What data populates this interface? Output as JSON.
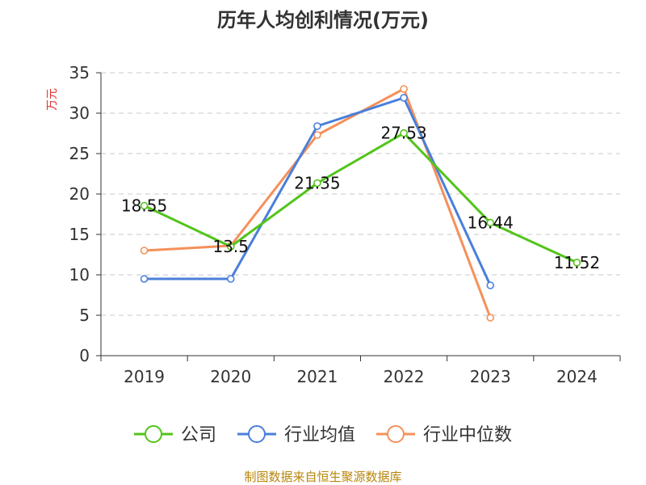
{
  "chart_data": {
    "type": "line",
    "title": "历年人均创利情况(万元)",
    "ylabel": "万元",
    "xlabel": "",
    "categories": [
      "2019",
      "2020",
      "2021",
      "2022",
      "2023",
      "2024"
    ],
    "ylim": [
      0,
      35
    ],
    "yticks": [
      0,
      5,
      10,
      15,
      20,
      25,
      30,
      35
    ],
    "grid": true,
    "legend_position": "bottom",
    "series": [
      {
        "name": "公司",
        "color": "#52c41a",
        "values": [
          18.55,
          13.5,
          21.35,
          27.53,
          16.44,
          11.52
        ],
        "labels": [
          "18.55",
          "13.5",
          "21.35",
          "27.53",
          "16.44",
          "11.52"
        ]
      },
      {
        "name": "行业均值",
        "color": "#4a7fdb",
        "values": [
          9.5,
          9.5,
          28.4,
          31.9,
          8.7,
          null
        ]
      },
      {
        "name": "行业中位数",
        "color": "#f5905a",
        "values": [
          13.0,
          13.6,
          27.3,
          33.0,
          4.7,
          null
        ]
      }
    ],
    "source": "制图数据来自恒生聚源数据库"
  }
}
